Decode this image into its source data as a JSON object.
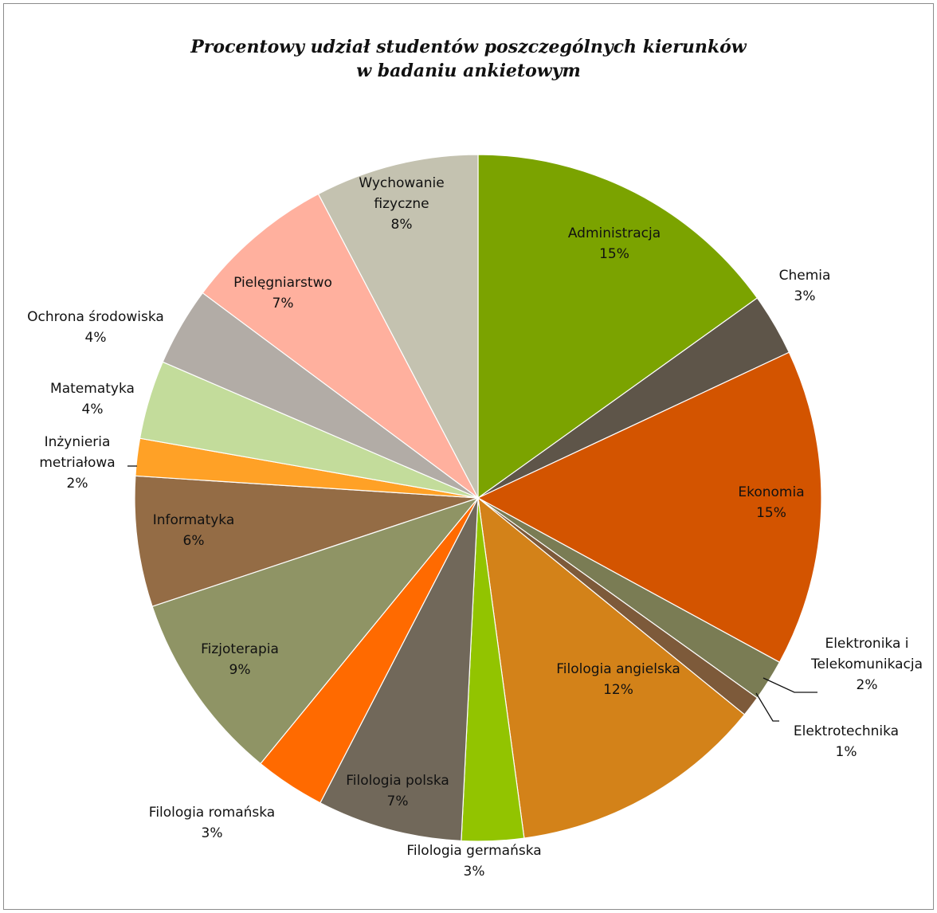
{
  "chart_data": {
    "type": "pie",
    "title_lines": [
      "Procentowy udział studentów poszczególnych kierunków",
      "w badaniu ankietowym"
    ],
    "slices": [
      {
        "name": "Administracja",
        "label_lines": [
          "Administracja"
        ],
        "value": 15.5,
        "pct_label": "15%",
        "color": "#7ba300",
        "label_inside": true
      },
      {
        "name": "Chemia",
        "label_lines": [
          "Chemia"
        ],
        "value": 3,
        "pct_label": "3%",
        "color": "#5e5549",
        "label_inside": false
      },
      {
        "name": "Ekonomia",
        "label_lines": [
          "Ekonomia"
        ],
        "value": 15.3,
        "pct_label": "15%",
        "color": "#d35400",
        "label_inside": true
      },
      {
        "name": "Elektronika i Telekomunikacja",
        "label_lines": [
          "Elektronika i",
          "Telekomunikacja"
        ],
        "value": 2,
        "pct_label": "2%",
        "color": "#7a7c54",
        "label_inside": false
      },
      {
        "name": "Elektrotechnika",
        "label_lines": [
          "Elektrotechnika"
        ],
        "value": 1,
        "pct_label": "1%",
        "color": "#7d5a3a",
        "label_inside": false
      },
      {
        "name": "Filologia angielska",
        "label_lines": [
          "Filologia angielska"
        ],
        "value": 12.3,
        "pct_label": "12%",
        "color": "#d38219",
        "label_inside": true
      },
      {
        "name": "Filologia germańska",
        "label_lines": [
          "Filologia germańska"
        ],
        "value": 3,
        "pct_label": "3%",
        "color": "#92c400",
        "label_inside": false
      },
      {
        "name": "Filologia polska",
        "label_lines": [
          "Filologia polska"
        ],
        "value": 7,
        "pct_label": "7%",
        "color": "#71685a",
        "label_inside": true
      },
      {
        "name": "Filologia romańska",
        "label_lines": [
          "Filologia romańska"
        ],
        "value": 3.4,
        "pct_label": "3%",
        "color": "#ff6a00",
        "label_inside": false
      },
      {
        "name": "Fizjoterapia",
        "label_lines": [
          "Fizjoterapia"
        ],
        "value": 9.2,
        "pct_label": "9%",
        "color": "#8f9465",
        "label_inside": true
      },
      {
        "name": "Informatyka",
        "label_lines": [
          "Informatyka"
        ],
        "value": 6.3,
        "pct_label": "6%",
        "color": "#946c45",
        "label_inside": true
      },
      {
        "name": "Inżynieria metriałowa",
        "label_lines": [
          "Inżynieria",
          "metriałowa"
        ],
        "value": 1.8,
        "pct_label": "2%",
        "color": "#ffa126",
        "label_inside": false
      },
      {
        "name": "Matematyka",
        "label_lines": [
          "Matematyka"
        ],
        "value": 3.8,
        "pct_label": "4%",
        "color": "#c3dc9b",
        "label_inside": false
      },
      {
        "name": "Ochrona środowiska",
        "label_lines": [
          "Ochrona środowiska"
        ],
        "value": 3.8,
        "pct_label": "4%",
        "color": "#b2aca6",
        "label_inside": false
      },
      {
        "name": "Pielęgniarstwo",
        "label_lines": [
          "Pielęgniarstwo"
        ],
        "value": 7.3,
        "pct_label": "7%",
        "color": "#ffb09e",
        "label_inside": true
      },
      {
        "name": "Wychowanie fizyczne",
        "label_lines": [
          "Wychowanie",
          "fizyczne"
        ],
        "value": 7.9,
        "pct_label": "8%",
        "color": "#c4c2b0",
        "label_inside": true
      }
    ],
    "start_angle": "12 o'clock",
    "direction": "clockwise",
    "legend": "none"
  }
}
